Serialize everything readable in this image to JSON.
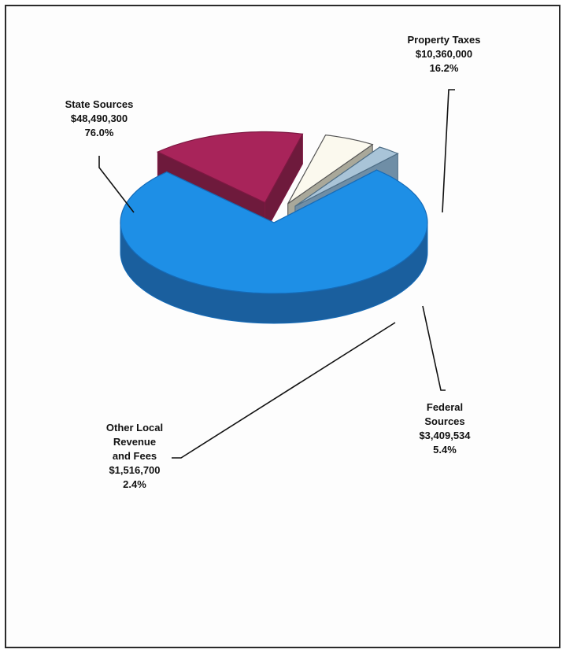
{
  "chart_data": {
    "type": "pie",
    "title": "",
    "slices": [
      {
        "name": "State Sources",
        "value": 48490300,
        "value_label": "$48,490,300",
        "percent_label": "76.0%",
        "color": "#1e8fe6",
        "side": "#1a5f9e",
        "edge": "#156bb8"
      },
      {
        "name": "Property Taxes",
        "value": 10360000,
        "value_label": "$10,360,000",
        "percent_label": "16.2%",
        "color": "#a8245a",
        "side": "#6e1a3c",
        "edge": "#7d1842"
      },
      {
        "name": "Federal Sources",
        "value": 3409534,
        "value_label": "$3,409,534",
        "percent_label": "5.4%",
        "color": "#fbf9ee",
        "side": "#a9a89a",
        "edge": "#555555"
      },
      {
        "name": "Other Local Revenue and Fees",
        "value": 1516700,
        "value_label": "$1,516,700",
        "percent_label": "2.4%",
        "color": "#a9c4d8",
        "side": "#6f8ea6",
        "edge": "#4f6e86"
      }
    ]
  },
  "labels": {
    "state": [
      "State Sources",
      "$48,490,300",
      "76.0%"
    ],
    "property": [
      "Property Taxes",
      "$10,360,000",
      "16.2%"
    ],
    "federal": [
      "Federal",
      "Sources",
      "$3,409,534",
      "5.4%"
    ],
    "other": [
      "Other Local",
      "Revenue",
      "and Fees",
      "$1,516,700",
      "2.4%"
    ]
  }
}
